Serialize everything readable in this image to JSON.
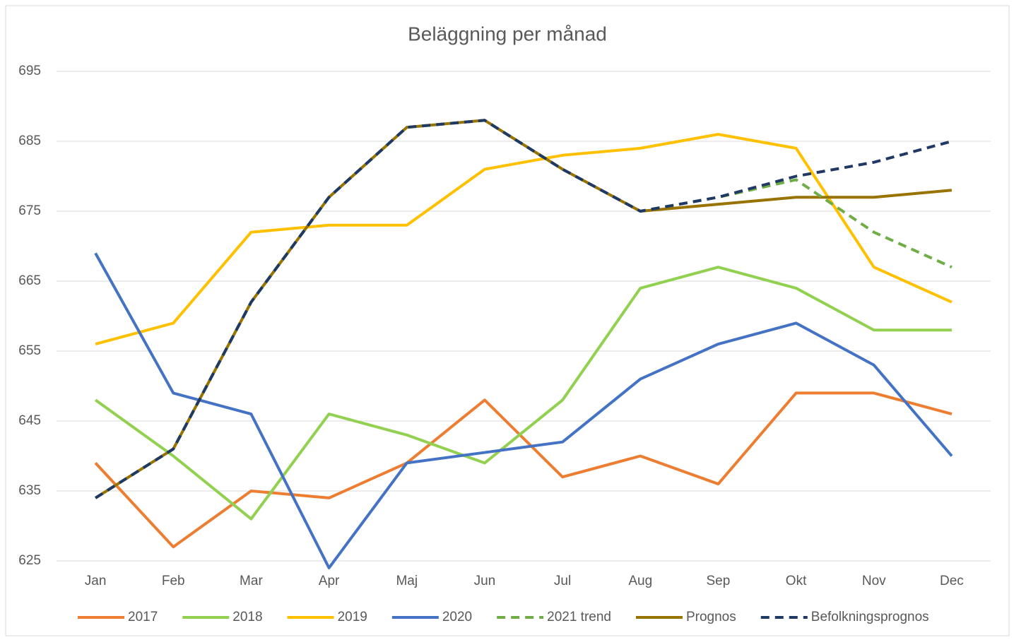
{
  "chart_data": {
    "type": "line",
    "title": "Beläggning per månad",
    "categories": [
      "Jan",
      "Feb",
      "Mar",
      "Apr",
      "Maj",
      "Jun",
      "Jul",
      "Aug",
      "Sep",
      "Okt",
      "Nov",
      "Dec"
    ],
    "series": [
      {
        "name": "2017",
        "color": "#ed7d31",
        "dashed": false,
        "values": [
          639,
          627,
          635,
          634,
          639,
          648,
          637,
          640,
          636,
          649,
          649,
          646
        ]
      },
      {
        "name": "2018",
        "color": "#92d050",
        "dashed": false,
        "values": [
          648,
          640,
          631,
          646,
          643,
          639,
          648,
          664,
          667,
          664,
          658,
          658
        ]
      },
      {
        "name": "2019",
        "color": "#ffc000",
        "dashed": false,
        "values": [
          656,
          659,
          672,
          673,
          673,
          681,
          683,
          684,
          686,
          684,
          667,
          662
        ]
      },
      {
        "name": "2020",
        "color": "#4472c4",
        "dashed": false,
        "values": [
          669,
          649,
          646,
          624,
          639,
          640.5,
          642,
          651,
          656,
          659,
          653,
          640
        ]
      },
      {
        "name": "2021 trend",
        "color": "#70ad47",
        "dashed": true,
        "values": [
          634,
          641,
          662,
          677,
          687,
          688,
          681,
          675,
          677,
          679.5,
          672,
          667
        ]
      },
      {
        "name": "Prognos",
        "color": "#997300",
        "dashed": false,
        "values": [
          634,
          641,
          662,
          677,
          687,
          688,
          681,
          675,
          676,
          677,
          677,
          678
        ]
      },
      {
        "name": "Befolkningsprognos",
        "color": "#203864",
        "dashed": true,
        "values": [
          634,
          641,
          662,
          677,
          687,
          688,
          681,
          675,
          677,
          680,
          682,
          685
        ]
      }
    ],
    "ylim": [
      625,
      695
    ],
    "yticks": [
      625,
      635,
      645,
      655,
      665,
      675,
      685,
      695
    ],
    "grid": true,
    "legend": "bottom"
  }
}
